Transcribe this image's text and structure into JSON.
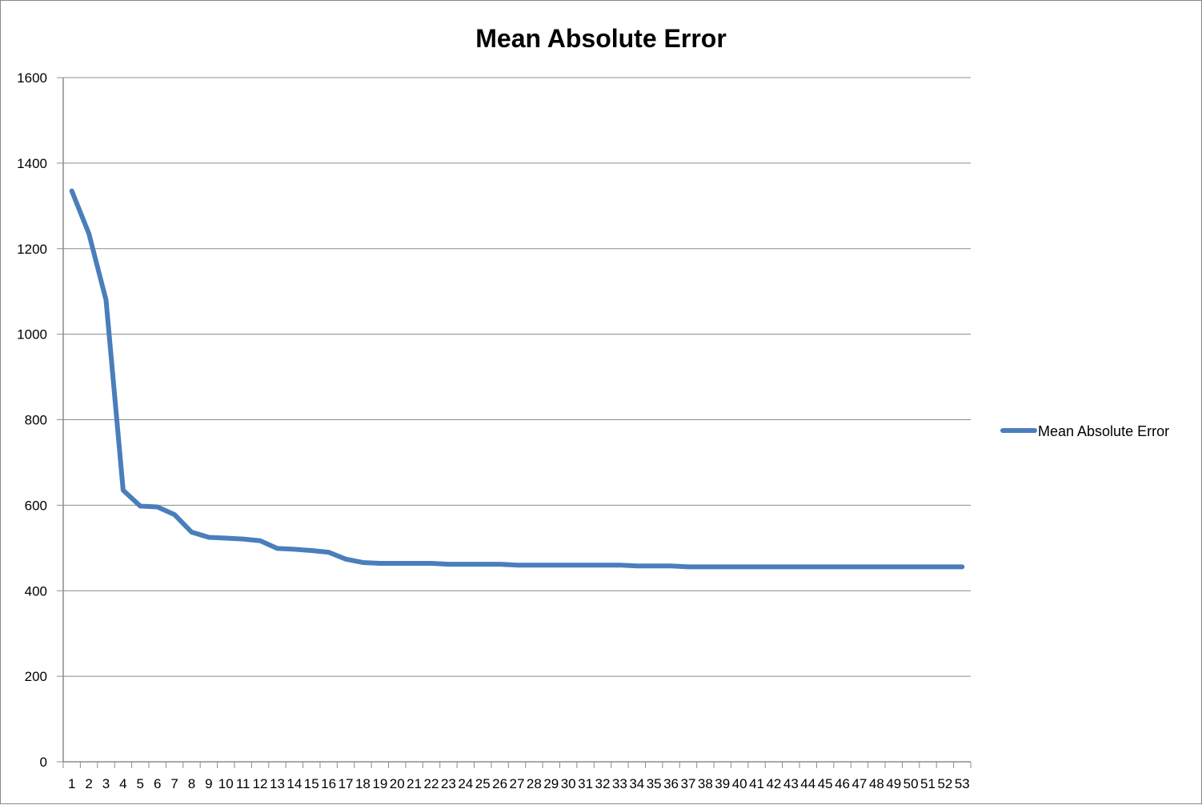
{
  "chart_data": {
    "type": "line",
    "title": "Mean Absolute Error",
    "xlabel": "",
    "ylabel": "",
    "ylim": [
      0,
      1600
    ],
    "yticks": [
      0,
      200,
      400,
      600,
      800,
      1000,
      1200,
      1400,
      1600
    ],
    "categories": [
      "1",
      "2",
      "3",
      "4",
      "5",
      "6",
      "7",
      "8",
      "9",
      "10",
      "11",
      "12",
      "13",
      "14",
      "15",
      "16",
      "17",
      "18",
      "19",
      "20",
      "21",
      "22",
      "23",
      "24",
      "25",
      "26",
      "27",
      "28",
      "29",
      "30",
      "31",
      "32",
      "33",
      "34",
      "35",
      "36",
      "37",
      "38",
      "39",
      "40",
      "41",
      "42",
      "43",
      "44",
      "45",
      "46",
      "47",
      "48",
      "49",
      "50",
      "51",
      "52",
      "53"
    ],
    "grid": true,
    "legend": "right",
    "series": [
      {
        "name": "Mean Absolute Error",
        "color": "#4a7ebb",
        "values": [
          1335,
          1235,
          1080,
          635,
          598,
          596,
          578,
          537,
          525,
          523,
          521,
          517,
          499,
          497,
          494,
          490,
          474,
          466,
          464,
          464,
          464,
          464,
          462,
          462,
          462,
          462,
          460,
          460,
          460,
          460,
          460,
          460,
          460,
          458,
          458,
          458,
          456,
          456,
          456,
          456,
          456,
          456,
          456,
          456,
          456,
          456,
          456,
          456,
          456,
          456,
          456,
          456,
          456
        ]
      }
    ]
  }
}
